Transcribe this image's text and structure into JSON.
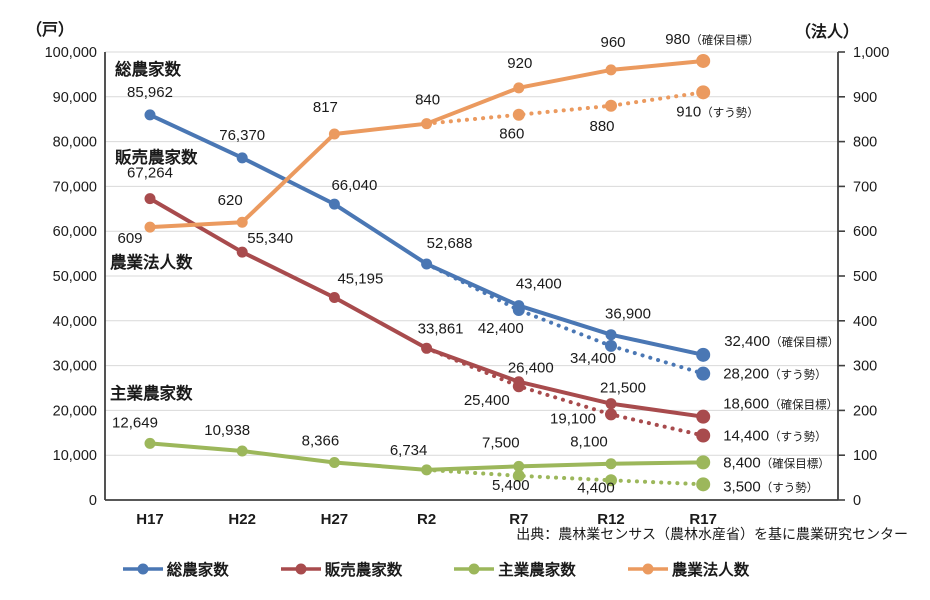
{
  "source": "出典：農林業センサス（農林水産省）を基に農業研究センター",
  "chart_data": {
    "type": "line",
    "title": "",
    "categories": [
      "H17",
      "H22",
      "H27",
      "R2",
      "R7",
      "R12",
      "R17"
    ],
    "left_axis": {
      "title": "（戸）",
      "min": 0,
      "max": 100000,
      "step": 10000
    },
    "right_axis": {
      "title": "（法人）",
      "min": 0,
      "max": 1000,
      "step": 100
    },
    "grid": true,
    "legend_position": "bottom",
    "annotations": [
      {
        "text": "総農家数",
        "x": 115,
        "y": 75
      },
      {
        "text": "販売農家数",
        "x": 115,
        "y": 163
      },
      {
        "text": "農業法人数",
        "x": 110,
        "y": 268
      },
      {
        "text": "主業農家数",
        "x": 110,
        "y": 399
      }
    ],
    "series": [
      {
        "name": "総農家数",
        "color": "#4A77B4",
        "axis": "left",
        "solid": [
          85962,
          76370,
          66040,
          52688,
          43400,
          36900,
          32400
        ],
        "trend": {
          "start": 3,
          "values": [
            52688,
            42400,
            34400,
            28200
          ]
        },
        "labels": [
          {
            "i": 0,
            "t": "85,962",
            "dx": 0,
            "dy": -18
          },
          {
            "i": 1,
            "t": "76,370",
            "dx": 0,
            "dy": -18
          },
          {
            "i": 2,
            "t": "66,040",
            "dx": 20,
            "dy": -14
          },
          {
            "i": 3,
            "t": "52,688",
            "dx": 23,
            "dy": -16
          },
          {
            "i": 4,
            "t": "43,400",
            "dx": 20,
            "dy": -17
          },
          {
            "i": 5,
            "t": "36,900",
            "dx": 17,
            "dy": -16
          }
        ],
        "trend_labels": [
          {
            "i": 4,
            "t": "42,400",
            "dx": -18,
            "dy": 23
          },
          {
            "i": 5,
            "t": "34,400",
            "dx": -18,
            "dy": 17
          }
        ],
        "end_label": {
          "t": "32,400",
          "suffix": "（確保目標）",
          "dx": 21,
          "dy": -9
        },
        "trend_end_label": {
          "t": "28,200",
          "suffix": "（すう勢）",
          "dx": 20,
          "dy": 5
        }
      },
      {
        "name": "販売農家数",
        "color": "#A84B4D",
        "axis": "left",
        "solid": [
          67264,
          55340,
          45195,
          33861,
          26400,
          21500,
          18600
        ],
        "trend": {
          "start": 3,
          "values": [
            33861,
            25400,
            19100,
            14400
          ]
        },
        "labels": [
          {
            "i": 0,
            "t": "67,264",
            "dx": 0,
            "dy": -21
          },
          {
            "i": 1,
            "t": "55,340",
            "dx": 28,
            "dy": -9
          },
          {
            "i": 2,
            "t": "45,195",
            "dx": 26,
            "dy": -14
          },
          {
            "i": 3,
            "t": "33,861",
            "dx": 14,
            "dy": -15
          },
          {
            "i": 4,
            "t": "26,400",
            "dx": 12,
            "dy": -9
          },
          {
            "i": 5,
            "t": "21,500",
            "dx": 12,
            "dy": -11
          }
        ],
        "trend_labels": [
          {
            "i": 4,
            "t": "25,400",
            "dx": -32,
            "dy": 19
          },
          {
            "i": 5,
            "t": "19,100",
            "dx": -38,
            "dy": 9
          }
        ],
        "end_label": {
          "t": "18,600",
          "suffix": "（確保目標）",
          "dx": 20,
          "dy": -8
        },
        "trend_end_label": {
          "t": "14,400",
          "suffix": "（すう勢）",
          "dx": 20,
          "dy": 5
        }
      },
      {
        "name": "主業農家数",
        "color": "#9CB75B",
        "axis": "left",
        "solid": [
          12649,
          10938,
          8366,
          6734,
          7500,
          8100,
          8400
        ],
        "trend": {
          "start": 3,
          "values": [
            6734,
            5400,
            4400,
            3500
          ]
        },
        "labels": [
          {
            "i": 0,
            "t": "12,649",
            "dx": -15,
            "dy": -16
          },
          {
            "i": 1,
            "t": "10,938",
            "dx": -15,
            "dy": -16
          },
          {
            "i": 2,
            "t": "8,366",
            "dx": -14,
            "dy": -17
          },
          {
            "i": 3,
            "t": "6,734",
            "dx": -18,
            "dy": -15
          },
          {
            "i": 4,
            "t": "7,500",
            "dx": -18,
            "dy": -19
          },
          {
            "i": 5,
            "t": "8,100",
            "dx": -22,
            "dy": -17
          }
        ],
        "trend_labels": [
          {
            "i": 4,
            "t": "5,400",
            "dx": -8,
            "dy": 14
          },
          {
            "i": 5,
            "t": "4,400",
            "dx": -15,
            "dy": 12
          }
        ],
        "end_label": {
          "t": "8,400",
          "suffix": "（確保目標）",
          "dx": 20,
          "dy": 5
        },
        "trend_end_label": {
          "t": "3,500",
          "suffix": "（すう勢）",
          "dx": 20,
          "dy": 7
        }
      },
      {
        "name": "農業法人数",
        "color": "#EB9A5F",
        "axis": "right",
        "solid": [
          609,
          620,
          817,
          840,
          920,
          960,
          980
        ],
        "trend": {
          "start": 3,
          "values": [
            840,
            860,
            880,
            910
          ]
        },
        "labels": [
          {
            "i": 0,
            "t": "609",
            "dx": -20,
            "dy": 16
          },
          {
            "i": 1,
            "t": "620",
            "dx": -12,
            "dy": -17
          },
          {
            "i": 2,
            "t": "817",
            "dx": -9,
            "dy": -22
          },
          {
            "i": 3,
            "t": "840",
            "dx": 1,
            "dy": -19
          },
          {
            "i": 4,
            "t": "920",
            "dx": 1,
            "dy": -20
          },
          {
            "i": 5,
            "t": "960",
            "dx": 2,
            "dy": -23
          }
        ],
        "trend_labels": [
          {
            "i": 4,
            "t": "860",
            "dx": -7,
            "dy": 24
          },
          {
            "i": 5,
            "t": "880",
            "dx": -9,
            "dy": 25
          }
        ],
        "end_label": {
          "t": "980",
          "suffix": "（確保目標）",
          "dx": -38,
          "dy": -17
        },
        "trend_end_label": {
          "t": "910",
          "suffix": "（すう勢）",
          "dx": -27,
          "dy": 24
        }
      }
    ]
  }
}
